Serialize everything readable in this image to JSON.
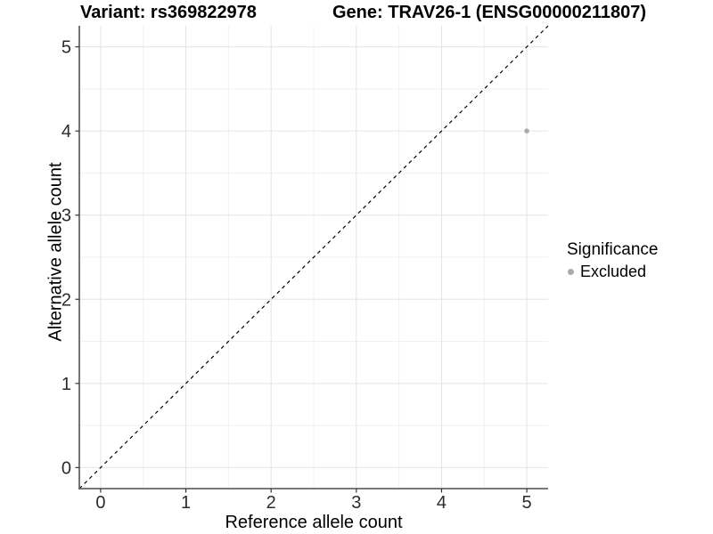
{
  "chart_data": {
    "type": "scatter",
    "title_left": "Variant: rs369822978",
    "title_right": "Gene: TRAV26-1 (ENSG00000211807)",
    "xlabel": "Reference allele count",
    "ylabel": "Alternative allele count",
    "xlim": [
      -0.25,
      5.25
    ],
    "ylim": [
      -0.25,
      5.25
    ],
    "x_ticks": [
      0,
      1,
      2,
      3,
      4,
      5
    ],
    "y_ticks": [
      0,
      1,
      2,
      3,
      4,
      5
    ],
    "grid": "major and minor gridlines on white background",
    "legend_position": "right",
    "legend_title": "Significance",
    "series": [
      {
        "name": "Excluded",
        "color": "#aaaaaa",
        "point_radius": 2.8,
        "points": [
          {
            "x": 5,
            "y": 4
          }
        ]
      }
    ],
    "reference_line": {
      "equation": "y = x",
      "style": "dashed",
      "color": "#000000"
    },
    "colors": {
      "grid_major": "#e4e4e4",
      "grid_minor": "#f1f1f1",
      "axis_line": "#666666",
      "tick": "#333333",
      "tick_label": "#2b2b2b",
      "background": "#ffffff"
    }
  }
}
